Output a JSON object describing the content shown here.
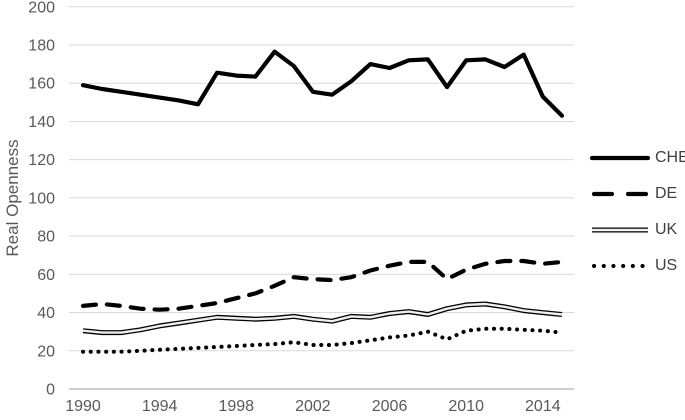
{
  "chart_data": {
    "type": "line",
    "title": "",
    "ylabel": "Real Openness",
    "xlabel": "",
    "x_start": 1990,
    "x_end": 2015,
    "ylim": [
      0,
      200
    ],
    "y_tick_step": 20,
    "x_ticks": [
      1990,
      1994,
      1998,
      2002,
      2006,
      2010,
      2014
    ],
    "grid": "horizontal",
    "legend_position": "right",
    "series": [
      {
        "name": "CHE",
        "style": "solid-thick",
        "values": [
          159,
          157,
          155.5,
          154,
          152.5,
          151,
          149,
          165.5,
          164,
          163.5,
          176.5,
          169,
          155.5,
          154,
          161,
          170,
          168,
          172,
          172.5,
          158,
          172,
          172.5,
          168.5,
          175,
          153,
          143
        ]
      },
      {
        "name": "DE",
        "style": "dashed",
        "values": [
          43.5,
          44.5,
          43.5,
          42,
          41.5,
          42,
          43.5,
          45,
          47.5,
          50,
          54,
          58.5,
          57.5,
          57,
          58.5,
          62,
          64.5,
          66.5,
          66.5,
          57.5,
          62.5,
          65.5,
          67,
          67,
          65.5,
          66.5
        ]
      },
      {
        "name": "UK",
        "style": "double",
        "values": [
          30.5,
          29.5,
          29.5,
          31,
          33,
          34.5,
          36,
          37.5,
          37,
          36.5,
          37,
          38,
          36.5,
          35.5,
          38,
          37.5,
          39.5,
          40.5,
          39,
          42,
          44,
          44.5,
          43,
          41,
          40,
          39
        ]
      },
      {
        "name": "US",
        "style": "dotted",
        "values": [
          19.5,
          19.5,
          19.5,
          20,
          20.5,
          21,
          21.5,
          22,
          22.5,
          23,
          23.5,
          24.5,
          23,
          23,
          24,
          25.5,
          27,
          28,
          30,
          26,
          30.5,
          31.5,
          31.5,
          31,
          30.5,
          29.5
        ]
      }
    ]
  },
  "colors": {
    "line": "#000000",
    "gridline": "#d9d9d9",
    "axis_line": "#bfbfbf",
    "tick_text": "#595959",
    "legend_text": "#404040",
    "double_line_core": "#efefef",
    "background": "#ffffff"
  }
}
